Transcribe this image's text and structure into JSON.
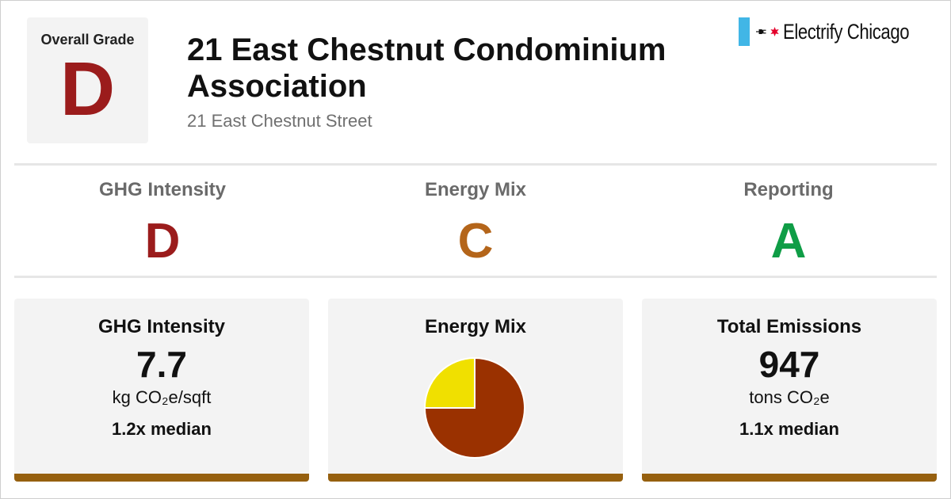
{
  "colors": {
    "grade_d": "#9b1c1c",
    "grade_c": "#b4651a",
    "grade_a": "#0f9d46",
    "accent_bar": "#96600f",
    "pie_primary": "#9a3100",
    "pie_secondary": "#f0e000",
    "logo_flag": "#41b6e6",
    "logo_star": "#e4002b"
  },
  "header": {
    "overall_label": "Overall Grade",
    "overall_grade": "D",
    "title": "21 East Chestnut Condominium Association",
    "address": "21 East Chestnut Street"
  },
  "logo": {
    "icons": [
      "chicago-flag-stripe-icon",
      "plug-icon",
      "red-star-icon"
    ],
    "text": "Electrify Chicago"
  },
  "grades": [
    {
      "label": "GHG Intensity",
      "grade": "D"
    },
    {
      "label": "Energy Mix",
      "grade": "C"
    },
    {
      "label": "Reporting",
      "grade": "A"
    }
  ],
  "cards": {
    "ghg": {
      "title": "GHG Intensity",
      "value": "7.7",
      "unit": "kg CO₂e/sqft",
      "median": "1.2x median"
    },
    "mix": {
      "title": "Energy Mix"
    },
    "emissions": {
      "title": "Total Emissions",
      "value": "947",
      "unit": "tons CO₂e",
      "median": "1.1x median"
    }
  },
  "chart_data": {
    "type": "pie",
    "slices": [
      {
        "value": 75,
        "color": "#9a3100"
      },
      {
        "value": 25,
        "color": "#f0e000"
      }
    ]
  }
}
